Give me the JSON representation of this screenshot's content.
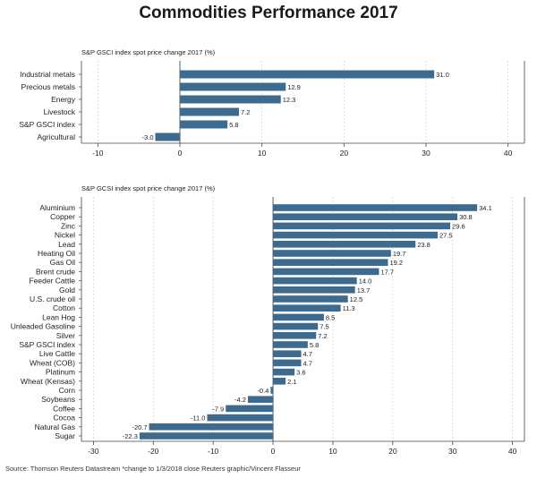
{
  "title": "Commodities Performance 2017",
  "source": "Source: Thomson Reuters Datastream *change to 1/3/2018 close Reuters graphic/Vincent Flasseur",
  "bar_color": "#3d6a8f",
  "chart_data": [
    {
      "type": "bar",
      "orientation": "horizontal",
      "subtitle": "S&P GSCI index spot price change 2017 (%)",
      "xlim": [
        -12,
        42
      ],
      "xticks": [
        -10,
        0,
        10,
        20,
        30,
        40
      ],
      "categories": [
        "Industrial metals",
        "Precious metals",
        "Energy",
        "Livestock",
        "S&P GSCI index",
        "Agricultural"
      ],
      "values": [
        31.0,
        12.9,
        12.3,
        7.2,
        5.8,
        -3.0
      ],
      "labels": [
        "31.0",
        "12.9",
        "12.3",
        "7.2",
        "5.8",
        "-3.0"
      ]
    },
    {
      "type": "bar",
      "orientation": "horizontal",
      "subtitle": "S&P GCSI index spot price change 2017 (%)",
      "xlim": [
        -32,
        42
      ],
      "xticks": [
        -30,
        -20,
        -10,
        0,
        10,
        20,
        30,
        40
      ],
      "categories": [
        "Aluminium",
        "Copper",
        "Zinc",
        "Nickel",
        "Lead",
        "Heating Oil",
        "Gas Oil",
        "Brent crude",
        "Feeder Cattle",
        "Gold",
        "U.S. crude oil",
        "Cotton",
        "Lean Hog",
        "Unleaded Gasoline",
        "Silver",
        "S&P GSCI index",
        "Live Cattle",
        "Wheat (COB)",
        "Platinum",
        "Wheat (Kensas)",
        "Corn",
        "Soybeans",
        "Coffee",
        "Cocoa",
        "Natural Gas",
        "Sugar"
      ],
      "values": [
        34.1,
        30.8,
        29.6,
        27.5,
        23.8,
        19.7,
        19.2,
        17.7,
        14.0,
        13.7,
        12.5,
        11.3,
        8.5,
        7.5,
        7.2,
        5.8,
        4.7,
        4.7,
        3.6,
        2.1,
        -0.4,
        -4.2,
        -7.9,
        -11.0,
        -20.7,
        -22.3
      ],
      "labels": [
        "34.1",
        "30.8",
        "29.6",
        "27.5",
        "23.8",
        "19.7",
        "19.2",
        "17.7",
        "14.0",
        "13.7",
        "12.5",
        "11.3",
        "8.5",
        "7.5",
        "7.2",
        "5.8",
        "4.7",
        "4.7",
        "3.6",
        "2.1",
        "-0.4",
        "-4.2",
        "-7.9",
        "-11.0",
        "-20.7",
        "-22.3"
      ]
    }
  ]
}
